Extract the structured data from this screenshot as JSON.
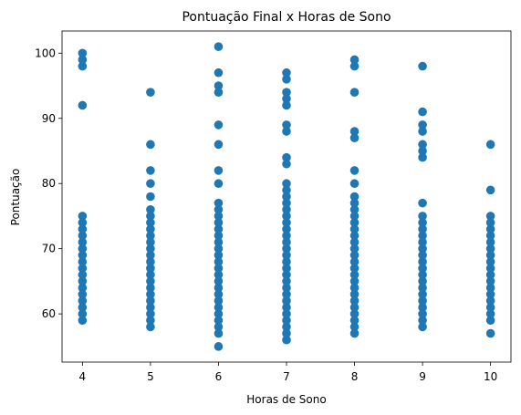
{
  "chart_data": {
    "type": "scatter",
    "title": "Pontuação Final x Horas de Sono",
    "xlabel": "Horas de Sono",
    "ylabel": "Pontuação",
    "xlim": [
      3.7,
      10.3
    ],
    "ylim": [
      52.6,
      103.4
    ],
    "xticks": [
      4,
      5,
      6,
      7,
      8,
      9,
      10
    ],
    "yticks": [
      60,
      70,
      80,
      90,
      100
    ],
    "grid": false,
    "marker_color": "#1f77b4",
    "points": [
      {
        "x": 4,
        "y": [
          59,
          60,
          61,
          62,
          63,
          64,
          65,
          66,
          67,
          68,
          69,
          70,
          71,
          72,
          73,
          74,
          75,
          92,
          98,
          99,
          100
        ]
      },
      {
        "x": 5,
        "y": [
          58,
          59,
          60,
          61,
          62,
          63,
          64,
          65,
          66,
          67,
          68,
          69,
          70,
          71,
          72,
          73,
          74,
          75,
          76,
          78,
          80,
          82,
          86,
          94
        ]
      },
      {
        "x": 6,
        "y": [
          55,
          57,
          58,
          59,
          60,
          61,
          62,
          63,
          64,
          65,
          66,
          67,
          68,
          69,
          70,
          71,
          72,
          73,
          74,
          75,
          76,
          77,
          80,
          82,
          86,
          89,
          94,
          95,
          97,
          101
        ]
      },
      {
        "x": 7,
        "y": [
          56,
          57,
          58,
          59,
          60,
          61,
          62,
          63,
          64,
          65,
          66,
          67,
          68,
          69,
          70,
          71,
          72,
          73,
          74,
          75,
          76,
          77,
          78,
          79,
          80,
          83,
          84,
          88,
          89,
          92,
          93,
          94,
          96,
          97
        ]
      },
      {
        "x": 8,
        "y": [
          57,
          58,
          59,
          60,
          61,
          62,
          63,
          64,
          65,
          66,
          67,
          68,
          69,
          70,
          71,
          72,
          73,
          74,
          75,
          76,
          77,
          78,
          80,
          82,
          87,
          88,
          94,
          98,
          99
        ]
      },
      {
        "x": 9,
        "y": [
          58,
          59,
          60,
          61,
          62,
          63,
          64,
          65,
          66,
          67,
          68,
          69,
          70,
          71,
          72,
          73,
          74,
          75,
          77,
          84,
          85,
          86,
          88,
          89,
          91,
          98
        ]
      },
      {
        "x": 10,
        "y": [
          57,
          59,
          60,
          61,
          62,
          63,
          64,
          65,
          66,
          67,
          68,
          69,
          70,
          71,
          72,
          73,
          74,
          75,
          79,
          86
        ]
      }
    ]
  }
}
